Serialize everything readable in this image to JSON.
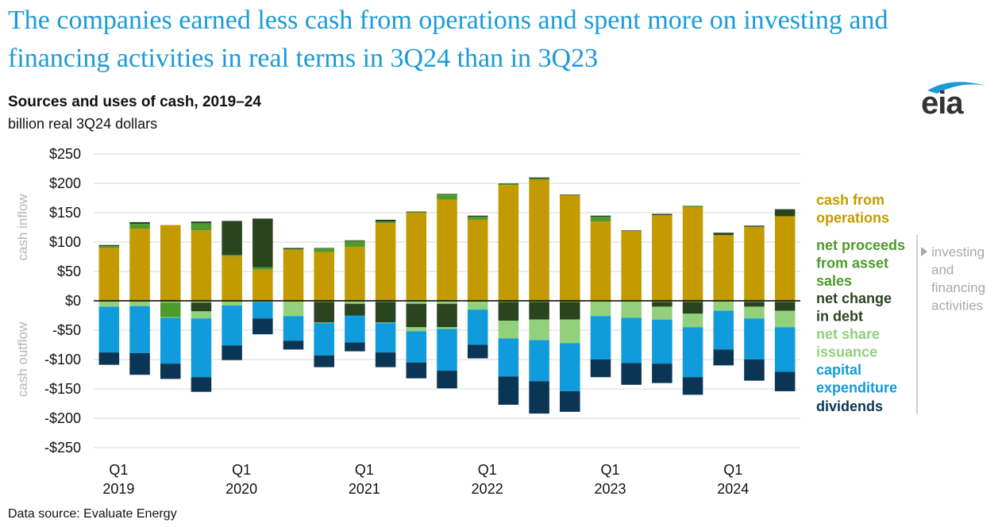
{
  "headline": "The companies earned less cash from operations and spent more on investing and financing activities in real terms in 3Q24 than in 3Q23",
  "brand": "eia",
  "source_note": "Data source: Evaluate Energy",
  "colors": {
    "operations": "#c39b00",
    "asset_sales": "#4e9a2c",
    "debt": "#2b4420",
    "share_issuance": "#92d07c",
    "capex": "#0f9bdc",
    "dividends": "#0b3554",
    "grid": "#d9d9d9",
    "side_label": "#b5b5b5"
  },
  "chart_data": {
    "type": "bar",
    "stacked": true,
    "title": "Sources and uses of cash, 2019–24",
    "subtitle": "billion real 3Q24 dollars",
    "xlabel": "",
    "ylabel": "",
    "ylim": [
      -250,
      250
    ],
    "yticks": [
      250,
      200,
      150,
      100,
      50,
      0,
      -50,
      -100,
      -150,
      -200,
      -250
    ],
    "ytick_labels": [
      "$250",
      "$200",
      "$150",
      "$100",
      "$50",
      "$0",
      "-$50",
      "-$100",
      "-$150",
      "-$200",
      "-$250"
    ],
    "side_labels": {
      "top": "cash inflow",
      "bottom": "cash outflow"
    },
    "categories": [
      "1Q19",
      "2Q19",
      "3Q19",
      "4Q19",
      "1Q20",
      "2Q20",
      "3Q20",
      "4Q20",
      "1Q21",
      "2Q21",
      "3Q21",
      "4Q21",
      "1Q22",
      "2Q22",
      "3Q22",
      "4Q22",
      "1Q23",
      "2Q23",
      "3Q23",
      "4Q23",
      "1Q24",
      "2Q24",
      "3Q24"
    ],
    "x_tick_labels": [
      {
        "index": 0,
        "line1": "Q1",
        "line2": "2019"
      },
      {
        "index": 4,
        "line1": "Q1",
        "line2": "2020"
      },
      {
        "index": 8,
        "line1": "Q1",
        "line2": "2021"
      },
      {
        "index": 12,
        "line1": "Q1",
        "line2": "2022"
      },
      {
        "index": 16,
        "line1": "Q1",
        "line2": "2023"
      },
      {
        "index": 20,
        "line1": "Q1",
        "line2": "2024"
      }
    ],
    "series": [
      {
        "name": "cash from operations",
        "key": "operations",
        "values": [
          90,
          123,
          129,
          120,
          76,
          53,
          87,
          83,
          92,
          132,
          150,
          172,
          138,
          197,
          206,
          180,
          135,
          119,
          146,
          160,
          112,
          126,
          144
        ]
      },
      {
        "name": "net proceeds from asset sales",
        "key": "asset_sales",
        "values": [
          3,
          8,
          0,
          12,
          2,
          4,
          1,
          6,
          10,
          3,
          1,
          9,
          5,
          2,
          2,
          0,
          8,
          0,
          0,
          2,
          0,
          0,
          0
        ]
      },
      {
        "name": "net change in debt",
        "key": "debt",
        "values": [
          2,
          3,
          -1,
          3,
          58,
          83,
          2,
          1,
          1,
          3,
          1,
          1,
          2,
          1,
          2,
          1,
          2,
          1,
          2,
          0,
          4,
          2,
          12
        ]
      },
      {
        "name": "net share issuance",
        "key": "share_issuance",
        "values": [
          -2,
          -2,
          -2,
          -3,
          -2,
          -2,
          -2,
          -2,
          -5,
          -2,
          -5,
          -5,
          -5,
          -2,
          -2,
          -2,
          -2,
          -2,
          -2,
          -2,
          -2,
          -2,
          -2
        ]
      },
      {
        "name": "asset sales (outflow)",
        "key": "asset_sales",
        "values": [
          0,
          0,
          -25,
          0,
          0,
          0,
          0,
          0,
          0,
          0,
          0,
          0,
          0,
          0,
          0,
          0,
          0,
          0,
          0,
          0,
          0,
          0,
          0
        ]
      },
      {
        "name": "debt (outflow)",
        "key": "debt",
        "values": [
          0,
          0,
          0,
          -15,
          0,
          0,
          0,
          -35,
          -20,
          -35,
          -40,
          -40,
          0,
          -32,
          -30,
          -30,
          0,
          0,
          -8,
          -20,
          0,
          -8,
          -15
        ]
      },
      {
        "name": "share issuance (outflow)",
        "key": "share_issuance",
        "values": [
          -8,
          -7,
          -1,
          -12,
          -6,
          0,
          -24,
          -1,
          0,
          -1,
          -7,
          -3,
          -10,
          -30,
          -35,
          -40,
          -24,
          -27,
          -22,
          -23,
          -15,
          -20,
          -28
        ]
      },
      {
        "name": "capital expenditure",
        "key": "capex",
        "values": [
          -78,
          -80,
          -78,
          -100,
          -68,
          -28,
          -42,
          -55,
          -46,
          -50,
          -53,
          -71,
          -60,
          -65,
          -70,
          -82,
          -74,
          -77,
          -75,
          -85,
          -66,
          -70,
          -76
        ]
      },
      {
        "name": "dividends",
        "key": "dividends",
        "values": [
          -21,
          -37,
          -26,
          -25,
          -25,
          -27,
          -15,
          -20,
          -15,
          -25,
          -27,
          -30,
          -23,
          -48,
          -55,
          -35,
          -30,
          -37,
          -33,
          -30,
          -27,
          -36,
          -33
        ]
      }
    ],
    "legend": [
      {
        "label_lines": [
          "cash from",
          "operations"
        ],
        "key": "operations"
      },
      {
        "label_lines": [
          "net proceeds",
          "from asset",
          "sales"
        ],
        "key": "asset_sales"
      },
      {
        "label_lines": [
          "net change",
          "in debt"
        ],
        "key": "debt"
      },
      {
        "label_lines": [
          "net share",
          "issuance"
        ],
        "key": "share_issuance"
      },
      {
        "label_lines": [
          "capital",
          "expenditure"
        ],
        "key": "capex"
      },
      {
        "label_lines": [
          "dividends"
        ],
        "key": "dividends"
      }
    ],
    "group_annotation": {
      "lines": [
        "investing",
        "and",
        "financing",
        "activities"
      ]
    }
  }
}
